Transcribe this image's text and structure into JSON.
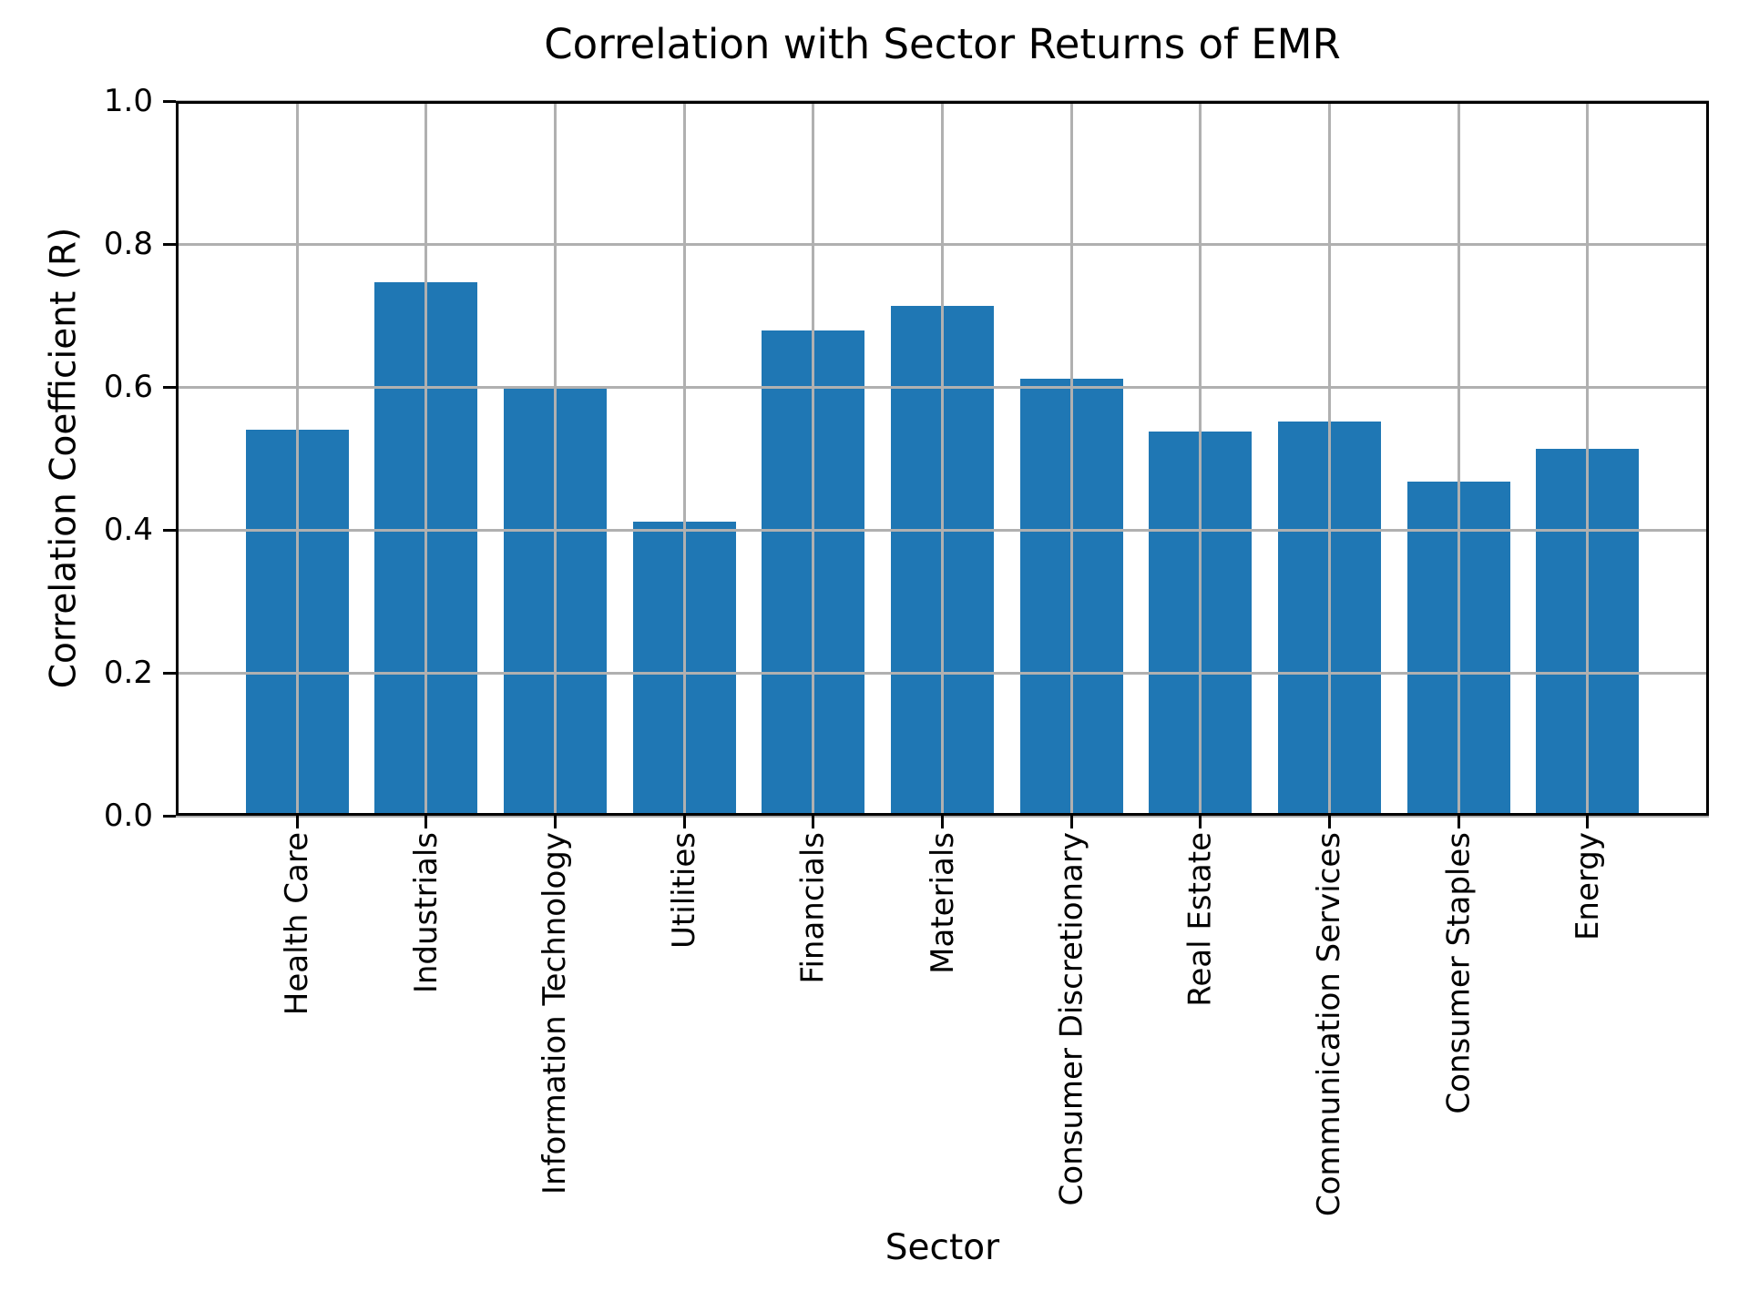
{
  "figure": {
    "title": "Correlation with Sector Returns of EMR",
    "xlabel": "Sector",
    "ylabel": "Correlation Coefficient (R)"
  },
  "chart_data": {
    "type": "bar",
    "title": "Correlation with Sector Returns of EMR",
    "xlabel": "Sector",
    "ylabel": "Correlation Coefficient (R)",
    "categories": [
      "Health Care",
      "Industrials",
      "Information Technology",
      "Utilities",
      "Financials",
      "Materials",
      "Consumer Discretionary",
      "Real Estate",
      "Communication Services",
      "Consumer Staples",
      "Energy"
    ],
    "values": [
      0.54,
      0.747,
      0.598,
      0.412,
      0.679,
      0.713,
      0.612,
      0.538,
      0.551,
      0.468,
      0.514
    ],
    "ylim": [
      0.0,
      1.0
    ],
    "yticks": [
      0.0,
      0.2,
      0.4,
      0.6,
      0.8,
      1.0
    ],
    "ytick_labels": [
      "0.0",
      "0.2",
      "0.4",
      "0.6",
      "0.8",
      "1.0"
    ],
    "xtick_rotation_deg": 90,
    "grid": true,
    "grid_over_bars": true,
    "legend_position": "none",
    "bar_color": "#1f77b4",
    "grid_color": "#b0b0b0",
    "axis_color": "#000000",
    "text_color": "#000000",
    "background_color": "#ffffff"
  }
}
